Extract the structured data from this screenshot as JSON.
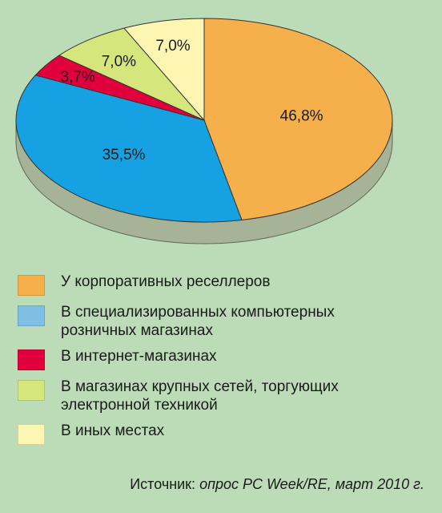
{
  "chart_data": {
    "type": "pie",
    "categories": [
      "У корпоративных реселлеров",
      "В специализированных компьютерных розничных магазинах",
      "В интернет-магазинах",
      "В магазинах крупных сетей, торгующих электронной техникой",
      "В иных местах"
    ],
    "values": [
      46.8,
      35.5,
      3.7,
      7.0,
      7.0
    ],
    "labels": [
      "46,8%",
      "35,5%",
      "3,7%",
      "7,0%",
      "7,0%"
    ],
    "colors": [
      "#f5b04c",
      "#16a2e2",
      "#e0003c",
      "#d5e77c",
      "#fdf6b2"
    ],
    "legend_colors": [
      "#f5b04c",
      "#7fbfe6",
      "#e0003c",
      "#d5e77c",
      "#fdf6b2"
    ],
    "legend": [
      "У корпоративных реселлеров",
      "В специализированных компьютерных\nрозничных магазинах",
      "В интернет-магазинах",
      "В магазинах крупных сетей, торгующих\nэлектронной техникой",
      "В иных местах"
    ],
    "legend_placement": "bottom",
    "style": "3d"
  },
  "source": {
    "prefix": "Источник: ",
    "text": "опрос PC Week/RE, март 2010 г."
  }
}
